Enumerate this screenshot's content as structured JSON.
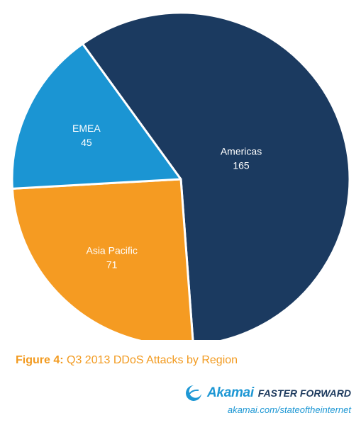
{
  "chart_data": {
    "type": "pie",
    "title": "Q3 2013 DDoS Attacks by Region",
    "slices": [
      {
        "label": "Americas",
        "value": 165,
        "color": "#1b3a60"
      },
      {
        "label": "Asia Pacific",
        "value": 71,
        "color": "#f59b22"
      },
      {
        "label": "EMEA",
        "value": 45,
        "color": "#1b95d3"
      }
    ],
    "start_angle_deg": 234.4,
    "direction": "clockwise",
    "value_labels_shown": true
  },
  "caption": {
    "figure_label": "Figure 4:",
    "text": "Q3 2013 DDoS Attacks by Region"
  },
  "branding": {
    "logo_name": "Akamai",
    "tagline": "FASTER FORWARD",
    "url": "akamai.com/stateoftheinternet"
  }
}
